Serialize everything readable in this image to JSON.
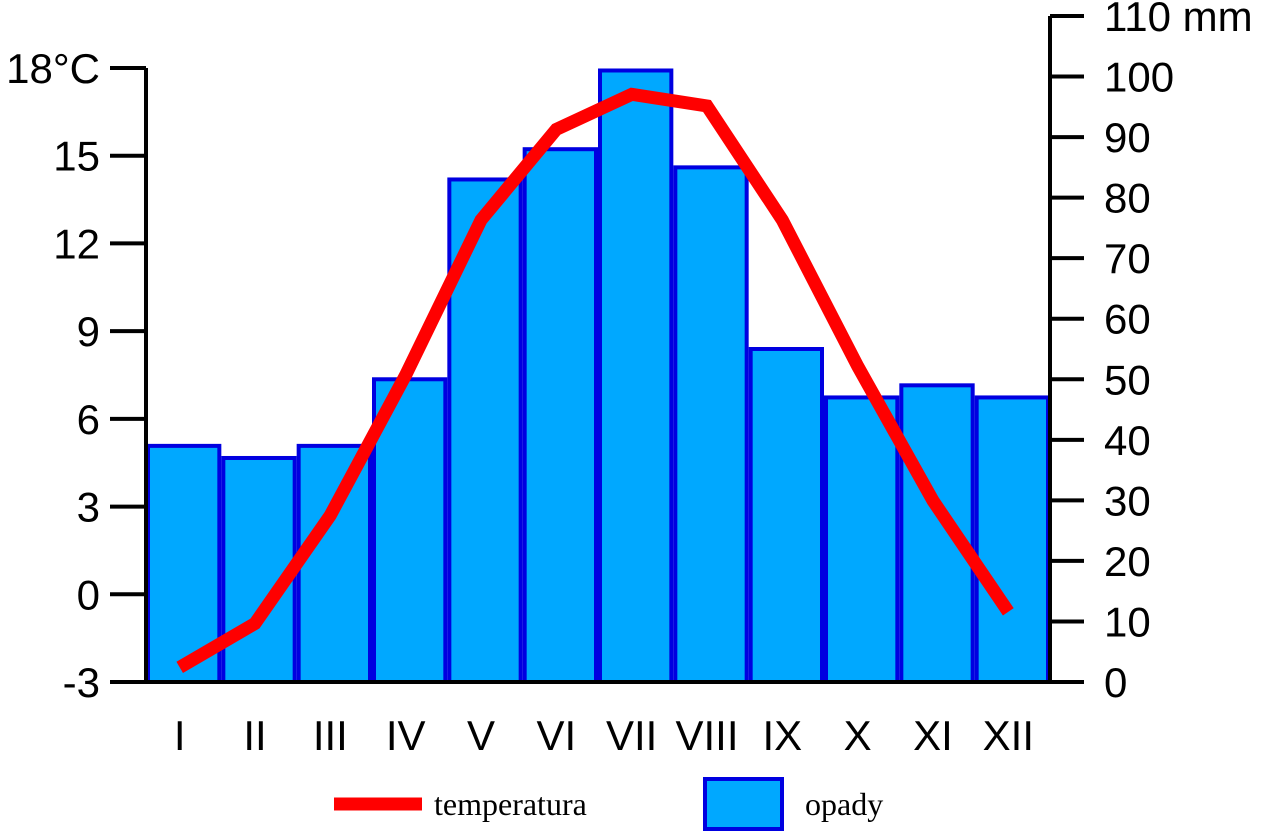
{
  "chart_data": {
    "type": "bar+line",
    "categories": [
      "I",
      "II",
      "III",
      "IV",
      "V",
      "VI",
      "VII",
      "VIII",
      "IX",
      "X",
      "XI",
      "XII"
    ],
    "series": [
      {
        "name": "temperatura",
        "kind": "line",
        "axis": "left",
        "color": "#ff0000",
        "values": [
          -2.5,
          -1.0,
          2.7,
          7.5,
          12.8,
          15.9,
          17.1,
          16.7,
          12.8,
          7.8,
          3.2,
          -0.6
        ]
      },
      {
        "name": "opady",
        "kind": "bar",
        "axis": "right",
        "color": "#00a8ff",
        "edge_color": "#0000e0",
        "values": [
          39,
          37,
          39,
          50,
          83,
          88,
          101,
          85,
          55,
          47,
          49,
          47
        ]
      }
    ],
    "left_axis": {
      "ylim": [
        -3,
        18
      ],
      "ticks": [
        -3,
        0,
        3,
        6,
        9,
        12,
        15,
        18
      ],
      "tick_labels": [
        "-3",
        "0",
        "3",
        "6",
        "9",
        "12",
        "15",
        "18°C"
      ]
    },
    "right_axis": {
      "ylim": [
        0,
        110
      ],
      "ticks": [
        0,
        10,
        20,
        30,
        40,
        50,
        60,
        70,
        80,
        90,
        100,
        110
      ],
      "tick_labels": [
        "0",
        "10",
        "20",
        "30",
        "40",
        "50",
        "60",
        "70",
        "80",
        "90",
        "100",
        "110 mm"
      ]
    },
    "legend": {
      "position": "bottom-center",
      "items": [
        {
          "label": "temperatura",
          "symbol": "line",
          "color": "#ff0000"
        },
        {
          "label": "opady",
          "symbol": "box",
          "color": "#00a8ff"
        }
      ]
    },
    "grid": false
  }
}
